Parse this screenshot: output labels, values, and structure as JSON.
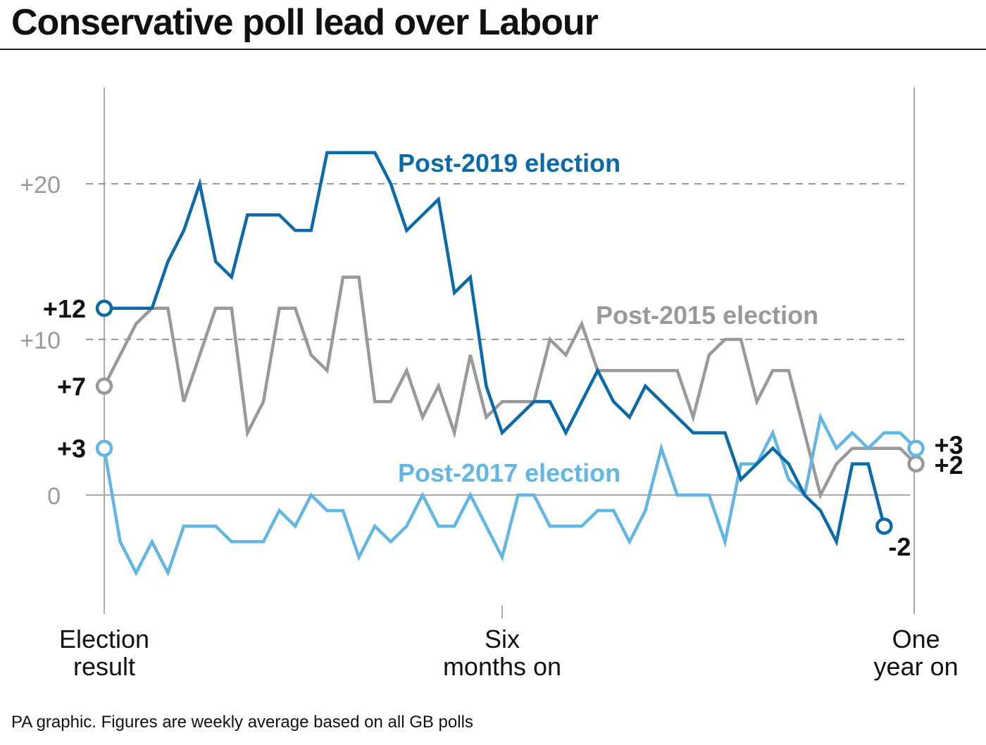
{
  "title": "Conservative poll lead over Labour",
  "footer": "PA graphic. Figures are weekly average based on all GB polls",
  "colors": {
    "post2019": "#0b6aa8",
    "post2015": "#999999",
    "post2017": "#62b6e4",
    "axis": "#aaaaaa",
    "tick_text": "#999999"
  },
  "chart_data": {
    "type": "line",
    "ylim": [
      -7.5,
      26
    ],
    "y_ticks": [
      {
        "value": 20,
        "label": "+20",
        "dashed": true
      },
      {
        "value": 10,
        "label": "+10",
        "dashed": true
      },
      {
        "value": 0,
        "label": "0",
        "dashed": false
      }
    ],
    "x_labels": [
      {
        "week": 0,
        "label": [
          "Election",
          "result"
        ]
      },
      {
        "week": 25,
        "label": [
          "Six",
          "months on"
        ]
      },
      {
        "week": 51,
        "label": [
          "One",
          "year on"
        ]
      }
    ],
    "series": [
      {
        "name": "Post-2015 election",
        "key": "post2015",
        "color": "#999999",
        "start_label": "+7",
        "end_label": "+2",
        "values": [
          7,
          9,
          11,
          12,
          12,
          6,
          9,
          12,
          12,
          4,
          6,
          12,
          12,
          9,
          8,
          14,
          14,
          6,
          6,
          8,
          5,
          7,
          4,
          9,
          5,
          6,
          6,
          6,
          10,
          9,
          11,
          8,
          8,
          8,
          8,
          8,
          8,
          5,
          9,
          10,
          10,
          6,
          8,
          8,
          4,
          0,
          2,
          3,
          3,
          3,
          3,
          2
        ]
      },
      {
        "name": "Post-2017 election",
        "key": "post2017",
        "color": "#62b6e4",
        "start_label": "+3",
        "end_label": "+3",
        "values": [
          3,
          -3,
          -5,
          -3,
          -5,
          -2,
          -2,
          -2,
          -3,
          -3,
          -3,
          -1,
          -2,
          0,
          -1,
          -1,
          -4,
          -2,
          -3,
          -2,
          0,
          -2,
          -2,
          0,
          -2,
          -4,
          0,
          0,
          -2,
          -2,
          -2,
          -1,
          -1,
          -3,
          -1,
          3,
          0,
          0,
          0,
          -3,
          2,
          2,
          4,
          1,
          0,
          5,
          3,
          4,
          3,
          4,
          4,
          3
        ]
      },
      {
        "name": "Post-2019 election",
        "key": "post2019",
        "color": "#0b6aa8",
        "start_label": "+12",
        "end_label": "-2",
        "values": [
          12,
          12,
          12,
          12,
          15,
          17,
          20,
          15,
          14,
          18,
          18,
          18,
          17,
          17,
          22,
          22,
          22,
          22,
          20,
          17,
          18,
          19,
          13,
          14,
          7,
          4,
          5,
          6,
          6,
          4,
          6,
          8,
          6,
          5,
          7,
          6,
          5,
          4,
          4,
          4,
          1,
          2,
          3,
          2,
          0,
          -1,
          -3,
          2,
          2,
          -2
        ]
      }
    ]
  }
}
